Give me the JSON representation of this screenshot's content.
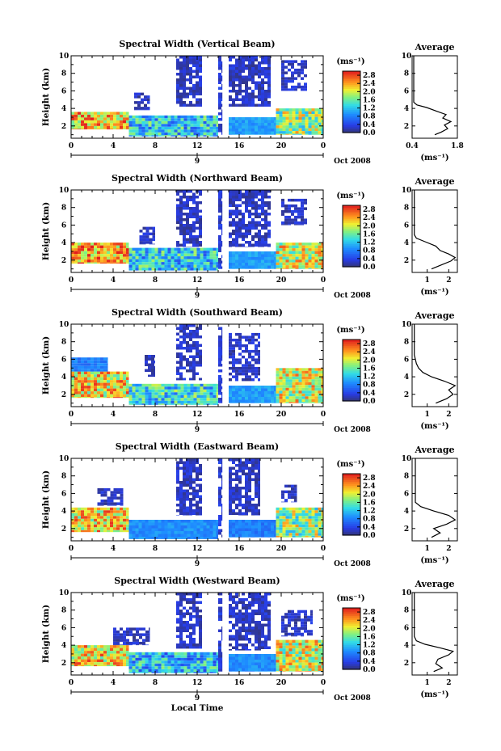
{
  "chart_data": [
    {
      "type": "heatmap",
      "title": "Spectral Width (Vertical Beam)",
      "ylabel": "Height (km)",
      "x_ticks": [
        "0",
        "4",
        "8",
        "12",
        "16",
        "20",
        "0"
      ],
      "y_ticks": [
        "2",
        "4",
        "6",
        "8",
        "10"
      ],
      "date_ticks": [
        "9"
      ],
      "date_label": "Oct 2008",
      "colorbar": {
        "unit": "(ms⁻¹)",
        "ticks": [
          "0.0",
          "0.4",
          "0.8",
          "1.2",
          "1.6",
          "2.0",
          "2.4",
          "2.8"
        ],
        "range": [
          0,
          3.0
        ]
      },
      "average": {
        "title": "Average",
        "xlabel": "(ms⁻¹)",
        "x_ticks": [
          "0.4",
          "1.8"
        ],
        "y_ticks": [
          "2",
          "4",
          "6",
          "8",
          "10"
        ],
        "xlim": [
          0.4,
          1.8
        ],
        "profile": [
          [
            1.1,
            1.0
          ],
          [
            1.3,
            1.3
          ],
          [
            1.5,
            1.7
          ],
          [
            1.4,
            2.1
          ],
          [
            1.6,
            2.5
          ],
          [
            1.35,
            2.9
          ],
          [
            1.45,
            3.3
          ],
          [
            1.15,
            3.7
          ],
          [
            0.85,
            4.1
          ],
          [
            0.55,
            4.4
          ],
          [
            0.45,
            4.7
          ]
        ]
      },
      "segments": [
        {
          "t0": 0.0,
          "t1": 5.5,
          "h0": 1.6,
          "h1": 3.6,
          "level": 2.3
        },
        {
          "t0": 5.5,
          "t1": 14.0,
          "h0": 0.8,
          "h1": 3.2,
          "level": 1.2
        },
        {
          "t0": 10.0,
          "t1": 12.5,
          "h0": 4.2,
          "h1": 10.0,
          "level": 0.25
        },
        {
          "t0": 14.0,
          "t1": 14.4,
          "h0": 1.0,
          "h1": 10.0,
          "level": 0.3
        },
        {
          "t0": 15.0,
          "t1": 19.5,
          "h0": 1.0,
          "h1": 3.0,
          "level": 1.0
        },
        {
          "t0": 15.0,
          "t1": 19.0,
          "h0": 4.2,
          "h1": 10.0,
          "level": 0.25
        },
        {
          "t0": 19.5,
          "t1": 24.0,
          "h0": 1.0,
          "h1": 4.0,
          "level": 1.8
        },
        {
          "t0": 6.0,
          "t1": 7.5,
          "h0": 3.8,
          "h1": 5.8,
          "level": 0.25
        },
        {
          "t0": 20.0,
          "t1": 22.5,
          "h0": 6.0,
          "h1": 9.5,
          "level": 0.25
        }
      ]
    },
    {
      "type": "heatmap",
      "title": "Spectral Width (Northward Beam)",
      "ylabel": "Height (km)",
      "x_ticks": [
        "0",
        "4",
        "8",
        "12",
        "16",
        "20",
        "0"
      ],
      "y_ticks": [
        "2",
        "4",
        "6",
        "8",
        "10"
      ],
      "date_ticks": [
        "9"
      ],
      "date_label": "Oct 2008",
      "colorbar": {
        "unit": "(ms⁻¹)",
        "ticks": [
          "0.0",
          "0.4",
          "0.8",
          "1.2",
          "1.6",
          "2.0",
          "2.4",
          "2.8"
        ],
        "range": [
          0,
          3.0
        ]
      },
      "average": {
        "title": "Average",
        "xlabel": "(ms⁻¹)",
        "x_ticks": [
          "1",
          "2"
        ],
        "y_ticks": [
          "2",
          "4",
          "6",
          "8",
          "10"
        ],
        "xlim": [
          0.3,
          2.4
        ],
        "profile": [
          [
            1.2,
            1.0
          ],
          [
            1.6,
            1.4
          ],
          [
            2.1,
            1.9
          ],
          [
            2.3,
            2.3
          ],
          [
            2.0,
            2.7
          ],
          [
            1.6,
            3.1
          ],
          [
            1.4,
            3.6
          ],
          [
            0.9,
            4.1
          ],
          [
            0.5,
            4.5
          ],
          [
            0.4,
            4.9
          ]
        ]
      },
      "segments": [
        {
          "t0": 0.0,
          "t1": 5.5,
          "h0": 1.6,
          "h1": 4.0,
          "level": 2.4
        },
        {
          "t0": 5.5,
          "t1": 14.0,
          "h0": 0.8,
          "h1": 3.4,
          "level": 1.2
        },
        {
          "t0": 10.0,
          "t1": 12.5,
          "h0": 3.5,
          "h1": 10.0,
          "level": 0.25
        },
        {
          "t0": 14.0,
          "t1": 14.4,
          "h0": 1.0,
          "h1": 10.0,
          "level": 0.3
        },
        {
          "t0": 15.0,
          "t1": 19.5,
          "h0": 1.0,
          "h1": 3.0,
          "level": 1.0
        },
        {
          "t0": 15.0,
          "t1": 19.0,
          "h0": 3.5,
          "h1": 10.0,
          "level": 0.25
        },
        {
          "t0": 19.5,
          "t1": 24.0,
          "h0": 1.0,
          "h1": 4.0,
          "level": 2.0
        },
        {
          "t0": 6.5,
          "t1": 8.0,
          "h0": 3.8,
          "h1": 5.8,
          "level": 0.25
        },
        {
          "t0": 20.0,
          "t1": 22.5,
          "h0": 6.0,
          "h1": 9.0,
          "level": 0.25
        }
      ]
    },
    {
      "type": "heatmap",
      "title": "Spectral Width (Southward Beam)",
      "ylabel": "Height (km)",
      "x_ticks": [
        "0",
        "4",
        "8",
        "12",
        "16",
        "20",
        "0"
      ],
      "y_ticks": [
        "2",
        "4",
        "6",
        "8",
        "10"
      ],
      "date_ticks": [
        "9"
      ],
      "date_label": "Oct 2008",
      "colorbar": {
        "unit": "(ms⁻¹)",
        "ticks": [
          "0.0",
          "0.4",
          "0.8",
          "1.2",
          "1.6",
          "2.0",
          "2.4",
          "2.8"
        ],
        "range": [
          0,
          3.0
        ]
      },
      "average": {
        "title": "Average",
        "xlabel": "(ms⁻¹)",
        "x_ticks": [
          "1",
          "2"
        ],
        "y_ticks": [
          "2",
          "4",
          "6",
          "8",
          "10"
        ],
        "xlim": [
          0.3,
          2.4
        ],
        "profile": [
          [
            1.4,
            1.0
          ],
          [
            1.9,
            1.5
          ],
          [
            2.2,
            2.0
          ],
          [
            2.0,
            2.5
          ],
          [
            2.3,
            3.0
          ],
          [
            1.8,
            3.5
          ],
          [
            1.2,
            4.0
          ],
          [
            0.8,
            4.5
          ],
          [
            0.6,
            5.0
          ],
          [
            0.5,
            5.5
          ],
          [
            0.45,
            6.0
          ],
          [
            0.4,
            6.5
          ]
        ]
      },
      "segments": [
        {
          "t0": 0.0,
          "t1": 5.5,
          "h0": 1.6,
          "h1": 4.6,
          "level": 2.2
        },
        {
          "t0": 5.5,
          "t1": 14.0,
          "h0": 0.8,
          "h1": 3.2,
          "level": 1.3
        },
        {
          "t0": 10.0,
          "t1": 12.5,
          "h0": 3.6,
          "h1": 10.0,
          "level": 0.25
        },
        {
          "t0": 14.0,
          "t1": 14.4,
          "h0": 1.0,
          "h1": 10.0,
          "level": 0.3
        },
        {
          "t0": 15.0,
          "t1": 19.5,
          "h0": 1.0,
          "h1": 3.0,
          "level": 1.0
        },
        {
          "t0": 15.0,
          "t1": 18.0,
          "h0": 3.5,
          "h1": 9.0,
          "level": 0.25
        },
        {
          "t0": 19.5,
          "t1": 24.0,
          "h0": 1.0,
          "h1": 5.0,
          "level": 2.0
        },
        {
          "t0": 0.0,
          "t1": 3.5,
          "h0": 4.6,
          "h1": 6.2,
          "level": 0.8
        },
        {
          "t0": 7.0,
          "t1": 8.0,
          "h0": 4.0,
          "h1": 6.5,
          "level": 0.25
        }
      ]
    },
    {
      "type": "heatmap",
      "title": "Spectral Width (Eastward Beam)",
      "ylabel": "Height (km)",
      "x_ticks": [
        "0",
        "4",
        "8",
        "12",
        "16",
        "20",
        "0"
      ],
      "y_ticks": [
        "2",
        "4",
        "6",
        "8",
        "10"
      ],
      "date_ticks": [
        "9"
      ],
      "date_label": "Oct 2008",
      "colorbar": {
        "unit": "(ms⁻¹)",
        "ticks": [
          "0.0",
          "0.4",
          "0.8",
          "1.2",
          "1.6",
          "2.0",
          "2.4",
          "2.8"
        ],
        "range": [
          0,
          3.0
        ]
      },
      "average": {
        "title": "Average",
        "xlabel": "(ms⁻¹)",
        "x_ticks": [
          "1",
          "2"
        ],
        "y_ticks": [
          "2",
          "4",
          "6",
          "8",
          "10"
        ],
        "xlim": [
          0.3,
          2.4
        ],
        "profile": [
          [
            1.2,
            1.0
          ],
          [
            1.6,
            1.5
          ],
          [
            1.3,
            2.0
          ],
          [
            1.9,
            2.5
          ],
          [
            2.3,
            3.0
          ],
          [
            2.0,
            3.5
          ],
          [
            1.3,
            4.0
          ],
          [
            0.7,
            4.5
          ],
          [
            0.45,
            5.0
          ]
        ]
      },
      "segments": [
        {
          "t0": 0.0,
          "t1": 5.5,
          "h0": 1.6,
          "h1": 4.4,
          "level": 2.2
        },
        {
          "t0": 5.5,
          "t1": 14.0,
          "h0": 0.8,
          "h1": 3.0,
          "level": 0.9
        },
        {
          "t0": 10.0,
          "t1": 12.5,
          "h0": 3.5,
          "h1": 10.0,
          "level": 0.25
        },
        {
          "t0": 14.0,
          "t1": 14.4,
          "h0": 1.0,
          "h1": 10.0,
          "level": 0.3
        },
        {
          "t0": 15.0,
          "t1": 19.5,
          "h0": 1.0,
          "h1": 3.0,
          "level": 0.8
        },
        {
          "t0": 15.0,
          "t1": 18.0,
          "h0": 3.5,
          "h1": 10.0,
          "level": 0.25
        },
        {
          "t0": 19.5,
          "t1": 24.0,
          "h0": 1.0,
          "h1": 4.4,
          "level": 1.8
        },
        {
          "t0": 2.5,
          "t1": 5.0,
          "h0": 4.6,
          "h1": 6.6,
          "level": 0.25
        },
        {
          "t0": 20.0,
          "t1": 21.5,
          "h0": 5.0,
          "h1": 7.0,
          "level": 0.25
        }
      ]
    },
    {
      "type": "heatmap",
      "title": "Spectral Width (Westward Beam)",
      "ylabel": "Height (km)",
      "x_ticks": [
        "0",
        "4",
        "8",
        "12",
        "16",
        "20",
        "0"
      ],
      "y_ticks": [
        "2",
        "4",
        "6",
        "8",
        "10"
      ],
      "date_ticks": [
        "9"
      ],
      "date_label": "Oct 2008",
      "xlabel": "Local Time",
      "colorbar": {
        "unit": "(ms⁻¹)",
        "ticks": [
          "0.0",
          "0.4",
          "0.8",
          "1.2",
          "1.6",
          "2.0",
          "2.4",
          "2.8"
        ],
        "range": [
          0,
          3.0
        ]
      },
      "average": {
        "title": "Average",
        "xlabel": "(ms⁻¹)",
        "x_ticks": [
          "1",
          "2"
        ],
        "y_ticks": [
          "2",
          "4",
          "6",
          "8",
          "10"
        ],
        "xlim": [
          0.3,
          2.4
        ],
        "profile": [
          [
            1.3,
            1.0
          ],
          [
            1.7,
            1.4
          ],
          [
            1.4,
            1.9
          ],
          [
            1.5,
            2.4
          ],
          [
            2.0,
            2.9
          ],
          [
            2.2,
            3.3
          ],
          [
            1.6,
            3.7
          ],
          [
            0.9,
            4.1
          ],
          [
            0.5,
            4.5
          ],
          [
            0.4,
            5.0
          ]
        ]
      },
      "segments": [
        {
          "t0": 0.0,
          "t1": 5.5,
          "h0": 1.6,
          "h1": 4.0,
          "level": 2.2
        },
        {
          "t0": 5.5,
          "t1": 14.0,
          "h0": 0.8,
          "h1": 3.2,
          "level": 1.1
        },
        {
          "t0": 10.0,
          "t1": 12.5,
          "h0": 3.6,
          "h1": 10.0,
          "level": 0.25
        },
        {
          "t0": 14.0,
          "t1": 14.4,
          "h0": 1.0,
          "h1": 10.0,
          "level": 0.3
        },
        {
          "t0": 15.0,
          "t1": 19.5,
          "h0": 1.0,
          "h1": 3.0,
          "level": 0.9
        },
        {
          "t0": 15.0,
          "t1": 19.0,
          "h0": 3.4,
          "h1": 10.0,
          "level": 0.25
        },
        {
          "t0": 19.5,
          "t1": 24.0,
          "h0": 1.0,
          "h1": 4.6,
          "level": 2.0
        },
        {
          "t0": 4.0,
          "t1": 7.5,
          "h0": 4.0,
          "h1": 6.0,
          "level": 0.25
        },
        {
          "t0": 20.0,
          "t1": 23.0,
          "h0": 5.0,
          "h1": 8.0,
          "level": 0.25
        }
      ]
    }
  ]
}
